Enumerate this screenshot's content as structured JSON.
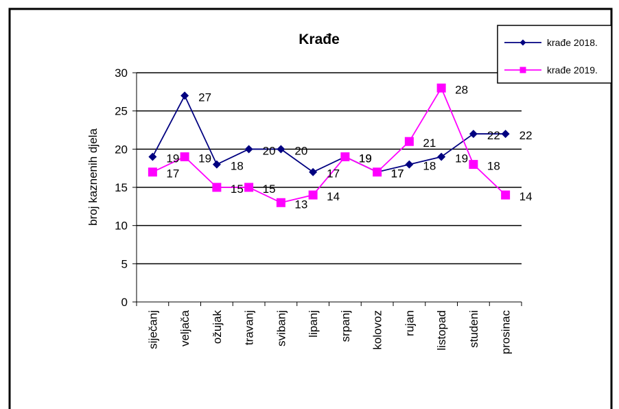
{
  "chart_data": {
    "type": "line",
    "title": "Krađe",
    "xlabel": "",
    "ylabel": "broj kaznenih djela",
    "ylim": [
      0,
      30
    ],
    "yticks": [
      0,
      5,
      10,
      15,
      20,
      25,
      30
    ],
    "grid": true,
    "legend_position": "top-right",
    "categories": [
      "siječanj",
      "veljača",
      "ožujak",
      "travanj",
      "svibanj",
      "lipanj",
      "srpanj",
      "kolovoz",
      "rujan",
      "listopad",
      "studeni",
      "prosinac"
    ],
    "series": [
      {
        "name": "krađe 2018.",
        "values": [
          19,
          27,
          18,
          20,
          20,
          17,
          19,
          17,
          18,
          19,
          22,
          22
        ],
        "color": "#000080",
        "marker": "diamond"
      },
      {
        "name": "krađe 2019.",
        "values": [
          17,
          19,
          15,
          15,
          13,
          14,
          19,
          17,
          21,
          28,
          18,
          14
        ],
        "color": "#ff00ff",
        "marker": "square"
      }
    ]
  }
}
